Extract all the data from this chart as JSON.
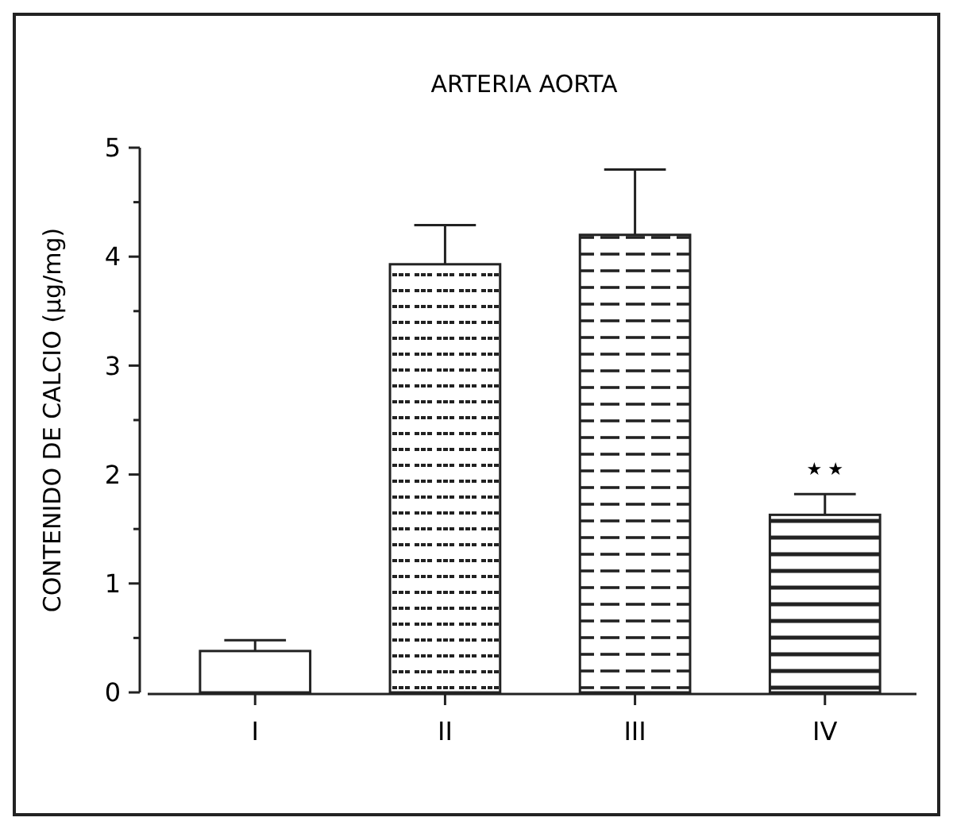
{
  "chart_data": {
    "type": "bar",
    "title": "ARTERIA AORTA",
    "ylabel": "CONTENIDO DE CALCIO (µg/mg)",
    "categories": [
      "I",
      "II",
      "III",
      "IV"
    ],
    "values": [
      0.38,
      3.93,
      4.2,
      1.63
    ],
    "errors": [
      [
        0.38,
        0.48
      ],
      [
        3.93,
        4.29
      ],
      [
        4.2,
        4.8
      ],
      [
        1.63,
        1.82
      ]
    ],
    "colors": [
      "#ffffff",
      "#ffffff",
      "#ffffff",
      "#ffffff"
    ],
    "ylim": [
      0,
      5
    ],
    "yticks": [
      0,
      {
        "value": 0.5,
        "label": null
      },
      1,
      {
        "value": 1.5,
        "label": null
      },
      2,
      {
        "value": 2.5,
        "label": null
      },
      3,
      {
        "value": 3.5,
        "label": null
      },
      4,
      {
        "value": 4.5,
        "label": null
      },
      5
    ],
    "annotations": [
      "★ ★"
    ],
    "grid": false
  }
}
